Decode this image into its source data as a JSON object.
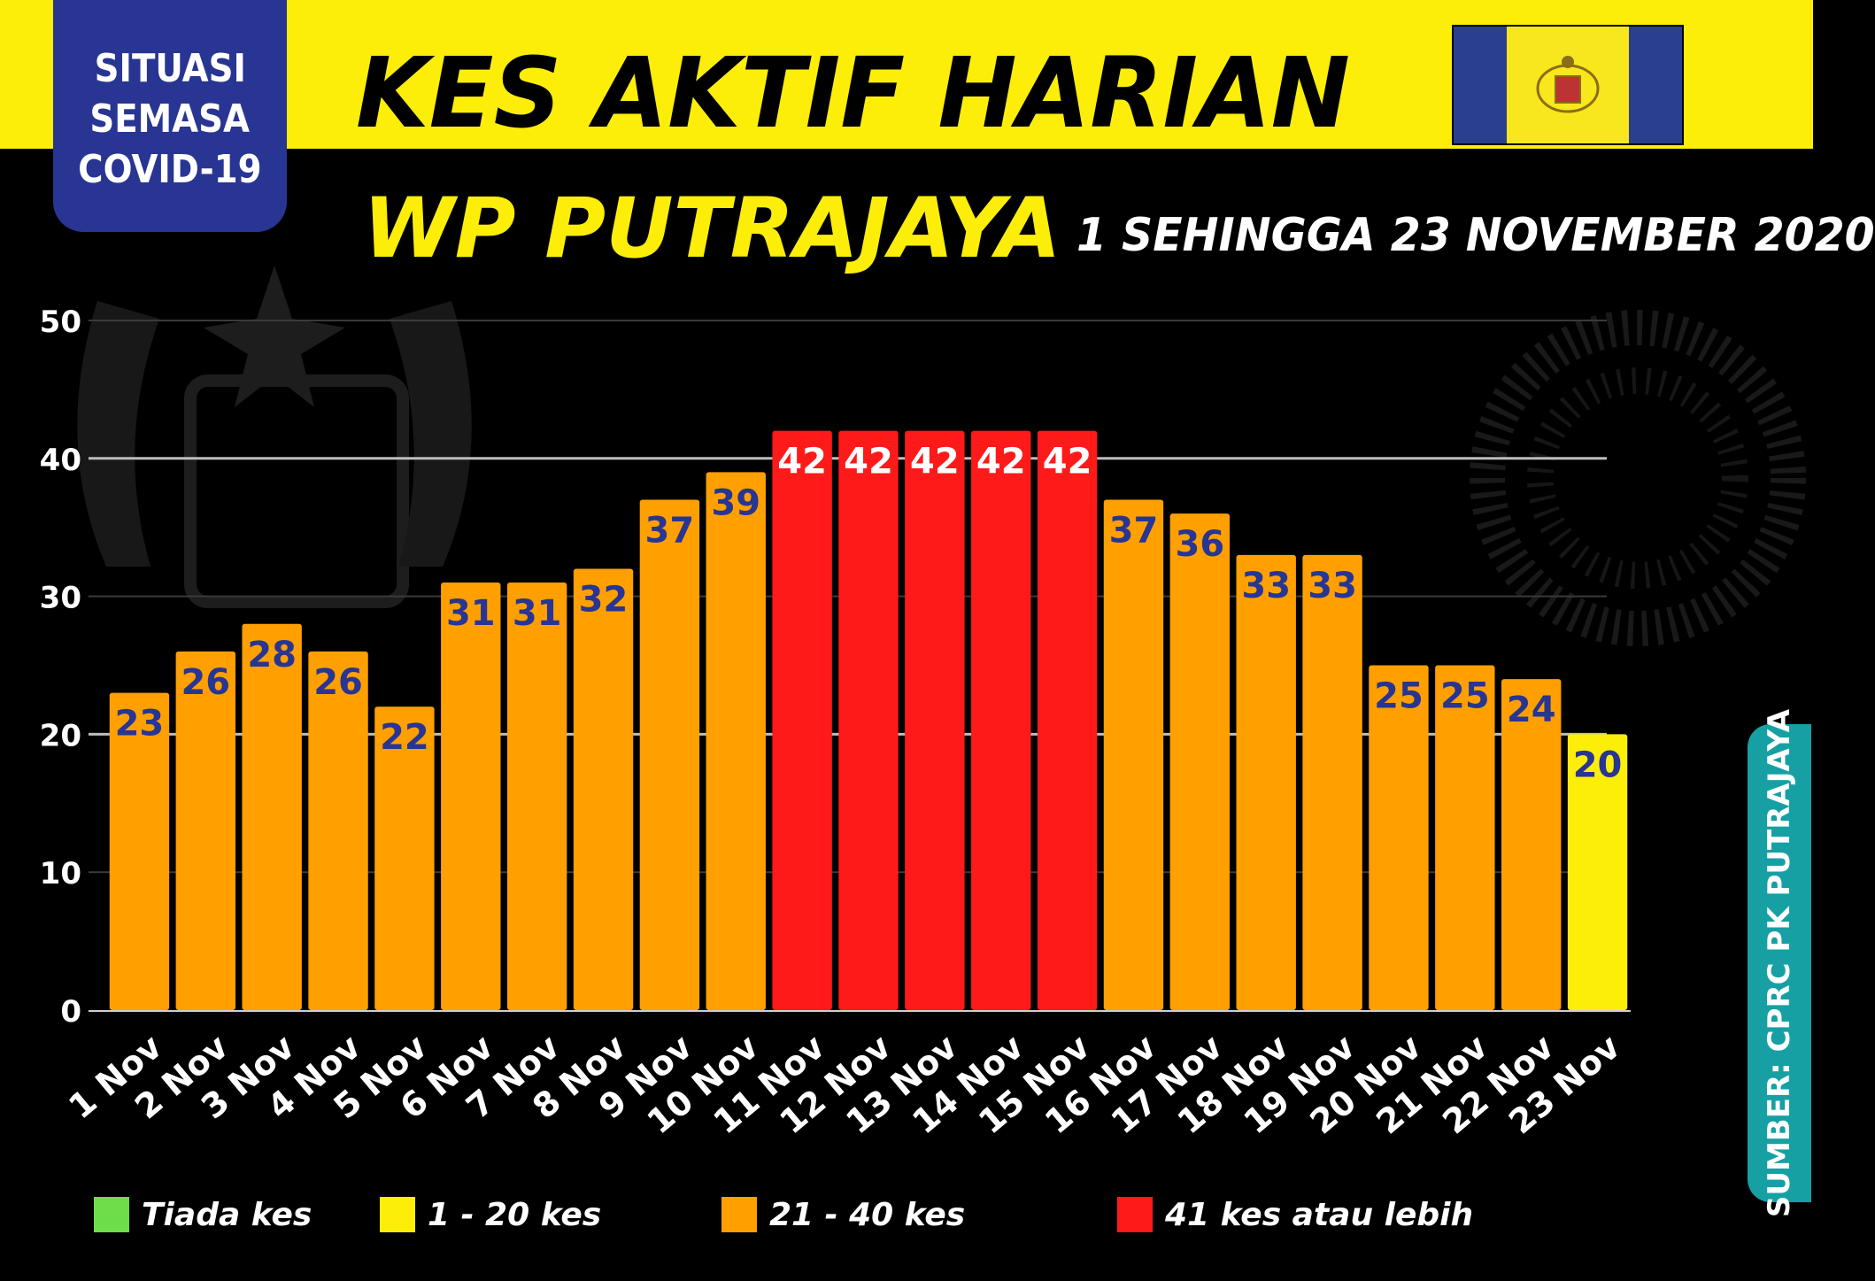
{
  "badge": {
    "lines": [
      "SITUASI",
      "SEMASA",
      "COVID-19"
    ]
  },
  "header": {
    "title": "KES AKTIF HARIAN",
    "subtitle": "WP PUTRAJAYA",
    "date_range": "1 SEHINGGA 23 NOVEMBER 2020"
  },
  "source": "SUMBER: CPRC PK PUTRAJAYA",
  "legend": [
    {
      "label": "Tiada kes",
      "color": "#6fdc4a"
    },
    {
      "label": "1 - 20 kes",
      "color": "#fcee09"
    },
    {
      "label": "21 - 40 kes",
      "color": "#ffa000"
    },
    {
      "label": "41 kes atau lebih",
      "color": "#ff1a1a"
    }
  ],
  "colors": {
    "background": "#000000",
    "header_band": "#fcee09",
    "badge": "#283593",
    "source_tag": "#17a0a4",
    "data_label": "#283593",
    "data_label_red_bar": "#ffffff"
  },
  "chart_data": {
    "type": "bar",
    "categories": [
      "1 Nov",
      "2 Nov",
      "3 Nov",
      "4 Nov",
      "5 Nov",
      "6 Nov",
      "7 Nov",
      "8 Nov",
      "9 Nov",
      "10 Nov",
      "11 Nov",
      "12 Nov",
      "13 Nov",
      "14 Nov",
      "15 Nov",
      "16 Nov",
      "17 Nov",
      "18 Nov",
      "19 Nov",
      "20 Nov",
      "21 Nov",
      "22 Nov",
      "23 Nov"
    ],
    "values": [
      23,
      26,
      28,
      26,
      22,
      31,
      31,
      32,
      37,
      39,
      42,
      42,
      42,
      42,
      42,
      37,
      36,
      33,
      33,
      25,
      25,
      24,
      20
    ],
    "ylim": [
      0,
      50
    ],
    "yticks": [
      0,
      10,
      20,
      30,
      40,
      50
    ],
    "grid": true,
    "legend_position": "bottom"
  }
}
